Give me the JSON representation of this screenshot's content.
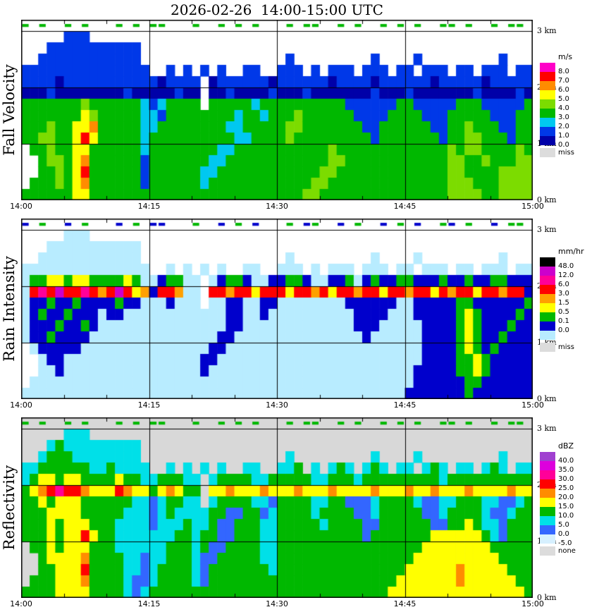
{
  "title": "2026-02-26  14:00-15:00 UTC",
  "x_axis": {
    "ticks": [
      "14:00",
      "14:15",
      "14:30",
      "14:45",
      "15:00"
    ]
  },
  "y_axis": {
    "ticks": [
      "0 km",
      "1 km",
      "2 km",
      "3 km"
    ]
  },
  "chart_data": [
    {
      "type": "heatmap",
      "title": "Fall Velocity",
      "x_ticks": [
        "14:00",
        "14:15",
        "14:30",
        "14:45",
        "15:00"
      ],
      "y_ticks": [
        "0 km",
        "1 km",
        "2 km",
        "3 km"
      ],
      "x_range_minutes": [
        0,
        60
      ],
      "y_range_km": [
        0,
        3.2
      ],
      "y_gridlines_km": [
        1,
        2,
        3
      ],
      "x_gridlines_min": [
        15,
        30,
        45
      ],
      "x_minor_tick_min": 5,
      "plot_background": "#FFFFFF",
      "colorbar": {
        "unit": "m/s",
        "cells": [
          {
            "color": "#FF00C8",
            "label": "8.0"
          },
          {
            "color": "#FF0000",
            "label": "7.0"
          },
          {
            "color": "#FF8C00",
            "label": "6.0"
          },
          {
            "color": "#FFFF00",
            "label": "5.0"
          },
          {
            "color": "#7CDC00",
            "label": "4.0"
          },
          {
            "color": "#00B800",
            "label": "3.0"
          },
          {
            "color": "#00C8F0",
            "label": "2.0"
          },
          {
            "color": "#0038E8",
            "label": "1.0"
          },
          {
            "color": "#0000A8",
            "label": "0.0"
          }
        ],
        "missing": {
          "color": "#DCDCDC",
          "label": "miss"
        }
      },
      "grid": {
        "palette": {
          "a": "#0000A8",
          "b": "#0038E8",
          "c": "#00C8F0",
          "g": "#00B800",
          "l": "#7CDC00",
          "y": "#FFFF00",
          "o": "#FF8C00",
          "r": "#FF0000",
          "m": "#FF00C8"
        },
        "palette_values": {
          "a": "0-1 m/s",
          "b": "1-2 m/s",
          "c": "2-3 m/s",
          "g": "3-4 m/s",
          "l": "4-5 m/s",
          "y": "5-6 m/s",
          "o": "6-7 m/s",
          "r": "7-8 m/s",
          "m": ">8 m/s"
        },
        "row_height_km": 0.2,
        "col_minutes": 1,
        "rows": [
          [
            "g.g..g.g..",
            ".g.g.gg...",
            "g..g.g.g..",
            ".g.gg..g.g",
            "..g.g.g..g",
            "g.g..g.gg."
          ],
          [
            ".....bbb..",
            "..........",
            "..........",
            "..........",
            "..........",
            ".........."
          ],
          [
            "...bbbbbbb",
            "bbbb......",
            "..........",
            "..........",
            "..........",
            ".........."
          ],
          [
            "..bbbbbbbb",
            "bbbb......",
            "..........",
            ".b........",
            ".b....b...",
            "......b..."
          ],
          [
            "bbbbbbbbbb",
            "bbbbb..b.b",
            ".b.b..bb..",
            "bbb.b.bbb.",
            "bbb.bb.bbb",
            ".bb.bbb.bb"
          ],
          [
            "bbbbabbbbb",
            "bbbbbbabbb",
            "b.abbbbbba",
            "bbbbbbabbb",
            "babbbbbbab",
            "bbbbabbbbb"
          ],
          [
            "aaabaaaaaa",
            "aabaaaaaba",
            "a.aabaaaab",
            "aaabaaaaaa",
            "abaaabaaaa",
            "aaabaaaaba"
          ],
          [
            "ggggggglgg",
            "ggggcbcggg",
            "g.gggggcgg",
            "ggggggggbb",
            "bbbbggbbbb",
            "bgggbbbbbg"
          ],
          [
            "gggggggylg",
            "ggggccbggg",
            "gggggcggcg",
            "gglggggggb",
            "bbbggggbbb",
            "gggggbbbgg"
          ],
          [
            "ggglggyyog",
            "ggggccgggg",
            "ggggccgggg",
            "gllggggggg",
            "bbggggggbb",
            "gglgggbbgg"
          ],
          [
            "ggllggyryg",
            "ggggcggggg",
            "gggggccggg",
            "glgggggggg",
            "gbgggggggb",
            "ggllgggbgg"
          ],
          [
            ".gglggyygg",
            "ggggcggggg",
            "gggccggggg",
            "gggggglggg",
            "gggggggggg",
            "lgllgggglg"
          ],
          [
            "..gllgyogg",
            "ggggbggggg",
            "ggccgggggg",
            "ggggggllgg",
            "gggggggggg",
            "llgglgggll"
          ],
          [
            "..gglgyrgg",
            "ggggbggggg",
            "gccggggggg",
            "gggggllggg",
            "gggggggggg",
            "llggggllll"
          ],
          [
            ".ggglgyogg",
            "ggggbggggg",
            "gcgggggggg",
            "ggggllgggg",
            "gggggggggg",
            "lllgggllll"
          ],
          [
            "ggggggyygg",
            "gggggggggg",
            "gggggggggg",
            "gggllggggg",
            "gggggggggg",
            "llllggllll"
          ]
        ]
      }
    },
    {
      "type": "heatmap",
      "title": "Rain Intensity",
      "x_ticks": [
        "14:00",
        "14:15",
        "14:30",
        "14:45",
        "15:00"
      ],
      "y_ticks": [
        "0 km",
        "1 km",
        "2 km",
        "3 km"
      ],
      "x_range_minutes": [
        0,
        60
      ],
      "y_range_km": [
        0,
        3.2
      ],
      "y_gridlines_km": [
        1,
        2,
        3
      ],
      "x_gridlines_min": [
        15,
        30,
        45
      ],
      "x_minor_tick_min": 5,
      "plot_background": "#FFFFFF",
      "colorbar": {
        "unit": "mm/hr",
        "cells": [
          {
            "color": "#000000",
            "label": "48.0"
          },
          {
            "color": "#CC00CC",
            "label": "12.0"
          },
          {
            "color": "#FF0099",
            "label": "6.0"
          },
          {
            "color": "#FF0000",
            "label": "3.0"
          },
          {
            "color": "#FFA000",
            "label": "1.5"
          },
          {
            "color": "#FFFF00",
            "label": "0.5"
          },
          {
            "color": "#00B800",
            "label": "0.1"
          },
          {
            "color": "#0000CC",
            "label": "0.0"
          },
          {
            "color": "#B8ECFF",
            "label": ""
          }
        ],
        "missing": {
          "color": "#DCDCDC",
          "label": "miss"
        }
      },
      "grid": {
        "palette": {
          "p": "#B8ECFF",
          "n": "#0000CC",
          "g": "#00B800",
          "y": "#FFFF00",
          "o": "#FFA000",
          "r": "#FF0000",
          "k": "#FF0099",
          "m": "#CC00CC",
          "K": "#000000"
        },
        "palette_values": {
          "p": "~0 mm/hr",
          "n": "0.0-0.1",
          "g": "0.1-0.5",
          "y": "0.5-1.5",
          "o": "1.5-3",
          "r": "3-6",
          "k": "6-12",
          "m": "12-48",
          "K": ">48"
        },
        "row_height_km": 0.2,
        "col_minutes": 1,
        "rows": [
          [
            "n.g..n.g..",
            ".n.g.nn...",
            "g..n.g.n..",
            ".g.ng..n.g",
            "..n.g.n..g",
            "n.g..n.gg."
          ],
          [
            ".....ppp..",
            "..........",
            "..........",
            "..........",
            "..........",
            ".........."
          ],
          [
            "...ppppppp",
            "pppp......",
            "..........",
            "..........",
            "..........",
            ".........."
          ],
          [
            "..pppppppp",
            "pppp......",
            "..........",
            ".p........",
            ".p....p...",
            "......p..."
          ],
          [
            "pppppppppp",
            "ppppp..p.p",
            ".p.p..pp..",
            "ppp.p.ppp.",
            "ppp.pp.ppp",
            ".pp.ppp.pp"
          ],
          [
            "pggyygyygg",
            "ggygppnggp",
            "p.pnggnppn",
            "nggnppnngp",
            "ngnnggnnng",
            "nngnnggnnn"
          ],
          [
            "prkrmrrkro",
            "rmryonrrop",
            "p.rrorryrr",
            "ryrroryrro",
            "rryrrorryr",
            "orryrrorrn"
          ],
          [
            "pnngnngnnn",
            "ngnnpppnpp",
            "p.ppnnppnn",
            "ppppppppnn",
            "nnnnppnnnn",
            "nggnnnnnng"
          ],
          [
            "pngnngnnnp",
            "nnpppppppp",
            "ppppnnppnp",
            "pppppppppn",
            "nnnpppnnnn",
            "ngygnnnngn"
          ],
          [
            "pnnngnngnp",
            "pppppppppp",
            "ppppnnpppp",
            "pppppppppn",
            "nnpppppnnn",
            "ngygnnngnn"
          ],
          [
            "pnngnnnnpp",
            "pppppppppp",
            "pppnnppppp",
            "pppppppppp",
            "nppppppnnn",
            "ngygnngnnn"
          ],
          [
            ".pnnnnnppp",
            "pppppppppp",
            "ppnnpppppp",
            "pppppppppp",
            "pppppppnnn",
            "ngygngnnnn"
          ],
          [
            "..pnnppppp",
            "pppppppppp",
            "pnnppppppp",
            "pppppppppp",
            "pppppppnnn",
            "nggygnnnnn"
          ],
          [
            "..ppnppppp",
            "pppppppppp",
            "pnpppppppp",
            "pppppppppp",
            "ppppppnnnn",
            "nggygnnnnn"
          ],
          [
            ".ppppppppp",
            "pppppppppp",
            "pppppppppp",
            "pppppppppp",
            "ppppppnnnn",
            "nnggnnnnnn"
          ],
          [
            "pppppppppp",
            "pppppppppp",
            "pppppppppp",
            "pppppppppp",
            "pppppnnnnn",
            "nngnnnnnnn"
          ]
        ]
      }
    },
    {
      "type": "heatmap",
      "title": "Reflectivity",
      "x_ticks": [
        "14:00",
        "14:15",
        "14:30",
        "14:45",
        "15:00"
      ],
      "y_ticks": [
        "0 km",
        "1 km",
        "2 km",
        "3 km"
      ],
      "x_range_minutes": [
        0,
        60
      ],
      "y_range_km": [
        0,
        3.2
      ],
      "y_gridlines_km": [
        1,
        2,
        3
      ],
      "x_gridlines_min": [
        15,
        30,
        45
      ],
      "x_minor_tick_min": 5,
      "plot_background": "#D8D8D8",
      "colorbar": {
        "unit": "dBZ",
        "cells": [
          {
            "color": "#A040D0",
            "label": "40.0"
          },
          {
            "color": "#DD00DD",
            "label": "35.0"
          },
          {
            "color": "#FF0099",
            "label": "30.0"
          },
          {
            "color": "#FF0000",
            "label": "25.0"
          },
          {
            "color": "#FF8C00",
            "label": "20.0"
          },
          {
            "color": "#FFFF00",
            "label": "15.0"
          },
          {
            "color": "#00B800",
            "label": "10.0"
          },
          {
            "color": "#00E0E8",
            "label": "5.0"
          },
          {
            "color": "#3366FF",
            "label": "0.0"
          },
          {
            "color": "#D6F0FF",
            "label": "-5.0"
          }
        ],
        "missing": {
          "color": "#DCDCDC",
          "label": "none"
        }
      },
      "grid": {
        "palette": {
          "x": null,
          "p": "#D6F0FF",
          "b": "#3366FF",
          "c": "#00E0E8",
          "g": "#00B800",
          "y": "#FFFF00",
          "o": "#FF8C00",
          "r": "#FF0000",
          "k": "#FF0099",
          "m": "#DD00DD",
          "v": "#A040D0"
        },
        "palette_values": {
          "x": "none",
          "p": "-5-0 dBZ",
          "b": "0-5 dBZ",
          "c": "5-10 dBZ",
          "g": "10-15 dBZ",
          "y": "15-20 dBZ",
          "o": "20-25 dBZ",
          "r": "25-30 dBZ",
          "k": "30-35 dBZ",
          "m": "35-40 dBZ",
          "v": ">40 dBZ"
        },
        "row_height_km": 0.2,
        "col_minutes": 1,
        "rows": [
          [
            "gxgxxgxgxx",
            "xgxgxggxxx",
            "gxxgxgxgxx",
            "xgxggxxgxg",
            "xxgxgxgxxg",
            "gxgxxgxggx"
          ],
          [
            "xxxxxcccxx",
            "xxxxxxxxxx",
            "xxxxxxxxxx",
            "xxxxxxxxxx",
            "xxxxxxxxxx",
            "xxxxxxxxxx"
          ],
          [
            "xxxcgccccc",
            "ccccxxxxxx",
            "xxxxxxxxxx",
            "xxxxxxxxxx",
            "xxxxxxxxxx",
            "xxxxxxxxxx"
          ],
          [
            "xxcgggcccc",
            "ccccxxxxxx",
            "xxxxxxxxxx",
            "xcxxxxxxxx",
            "xcxxxxcxxx",
            "xxxxxxcxxx"
          ],
          [
            "ccggggggcc",
            "gccccxxcxc",
            "xcxcxxccxx",
            "ccgxcxcgcx",
            "cgcxccxcgc",
            "xccxcgcxcc"
          ],
          [
            "cgyygyyggg",
            "gyggccgggc",
            "cxcggggccg",
            "ggggccgggc",
            "gggggggggc",
            "gggggggggg"
          ],
          [
            "gyorkrroyy",
            "yroyygyoyg",
            "gxyyoyyyoy",
            "yyoyyyoyyy",
            "yoyyyoyyoy",
            "yyoyyyyoyy"
          ],
          [
            "ggygyyyggg",
            "gggccbcggc",
            "cxcggggccb",
            "ggggccggbb",
            "bcggggcbbc",
            "cgggccbbcg"
          ],
          [
            "gggyyyyggg",
            "ggcccbcgcc",
            "ccggbbggbc",
            "ggggcggggb",
            "bcgggggbbc",
            "ggggcbbcgg"
          ],
          [
            "gggygyyygg",
            "gccccbcccg",
            "ccgbbgggcc",
            "gggggcgggg",
            "bbggggggbb",
            "ggygccbggg"
          ],
          [
            "gggygyyryg",
            "gcccccccgg",
            "cggbbgggcc",
            "gggggggggg",
            "bgggggggyy",
            "yyyygcbggg"
          ],
          [
            "xggygyyygg",
            "gccccccggg",
            "cgbbggggcc",
            "gggggggggg",
            "gggggggyyy",
            "yyyyyggggg"
          ],
          [
            "xxgyyyyogg",
            "ggccbccggg",
            "cbbgggggcc",
            "gggggggggg",
            "ggggggyyyy",
            "yyyyyygggg"
          ],
          [
            "xxggyyyrgg",
            "ggccbcgggg",
            "cbgggggggc",
            "gggggggggg",
            "gggggyyyyy",
            "yoyyyyyggg"
          ],
          [
            "xgggyyyogg",
            "ggcbbcgggg",
            "cbgggggggg",
            "gggggggggg",
            "ggggyyyyyy",
            "yoyyyyyygg"
          ],
          [
            "ggggyyyygg",
            "ggcbcggggg",
            "gggggggggg",
            "gggggggggg",
            "gggyyyyyyy",
            "yyyyyyyyyg"
          ]
        ]
      }
    }
  ]
}
